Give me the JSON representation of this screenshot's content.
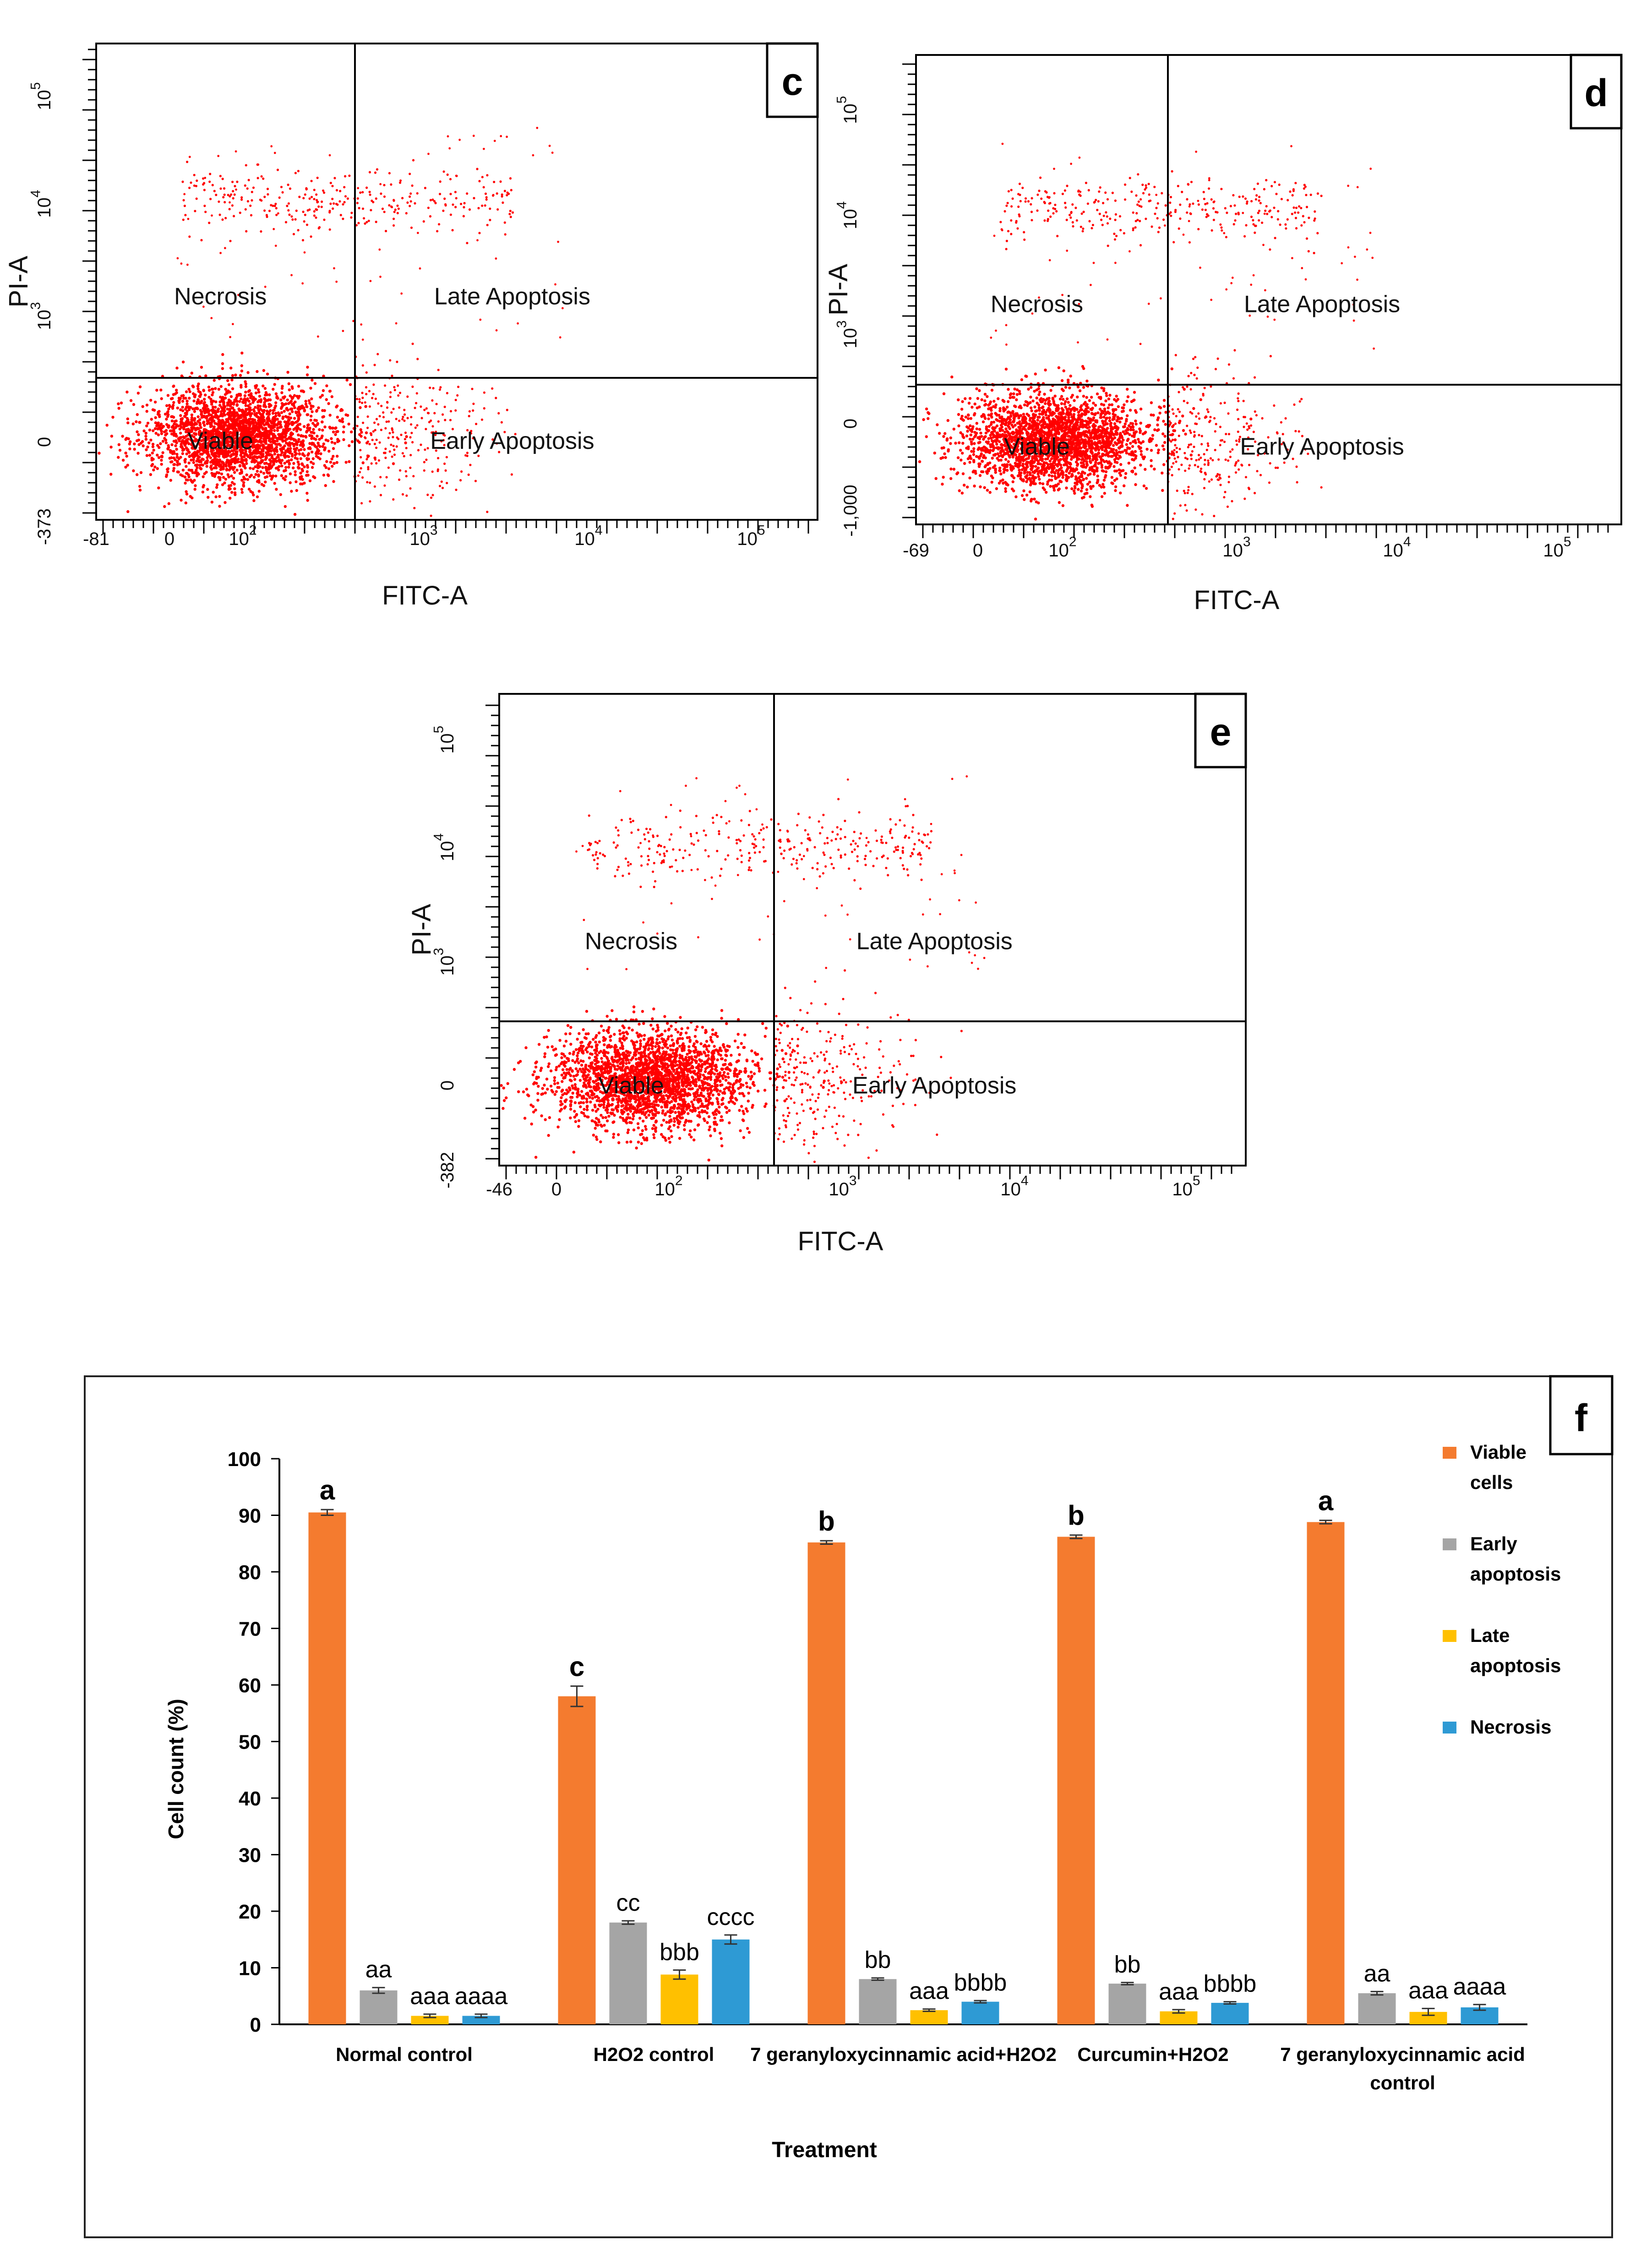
{
  "chart_data": [
    {
      "type": "scatter",
      "panel_label": "c",
      "xlabel": "FITC-A",
      "ylabel": "PI-A",
      "x_ticks": [
        "-81",
        "0",
        "10^2",
        "10^3",
        "10^4",
        "10^5"
      ],
      "y_ticks": [
        "-373",
        "0",
        "10^3",
        "10^4",
        "10^5"
      ],
      "quadrants": [
        "Necrosis",
        "Late Apoptosis",
        "Viable",
        "Early Apoptosis"
      ],
      "color": "#ff0000"
    },
    {
      "type": "scatter",
      "panel_label": "d",
      "xlabel": "FITC-A",
      "ylabel": "PI-A",
      "x_ticks": [
        "-69",
        "0",
        "10^2",
        "10^3",
        "10^4",
        "10^5"
      ],
      "y_ticks": [
        "-1,000",
        "0",
        "10^3",
        "10^4",
        "10^5"
      ],
      "quadrants": [
        "Necrosis",
        "Late Apoptosis",
        "Viable",
        "Early Apoptosis"
      ],
      "color": "#ff0000"
    },
    {
      "type": "scatter",
      "panel_label": "e",
      "xlabel": "FITC-A",
      "ylabel": "PI-A",
      "x_ticks": [
        "-46",
        "0",
        "10^2",
        "10^3",
        "10^4",
        "10^5"
      ],
      "y_ticks": [
        "-382",
        "0",
        "10^3",
        "10^4",
        "10^5"
      ],
      "quadrants": [
        "Necrosis",
        "Late Apoptosis",
        "Viable",
        "Early Apoptosis"
      ],
      "color": "#ff0000"
    },
    {
      "type": "bar",
      "panel_label": "f",
      "xlabel": "Treatment",
      "ylabel": "Cell count (%)",
      "ylim": [
        0,
        100
      ],
      "y_ticks": [
        0,
        10,
        20,
        30,
        40,
        50,
        60,
        70,
        80,
        90,
        100
      ],
      "categories": [
        "Normal control",
        "H2O2 control",
        "7 geranyloxycinnamic acid+H2O2",
        "Curcumin+H2O2",
        "7 geranyloxycinnamic acid control"
      ],
      "series": [
        {
          "name": "Viable cells",
          "color": "#f47b2f",
          "values": [
            90.5,
            58.0,
            85.2,
            86.2,
            88.8
          ],
          "errors": [
            0.5,
            1.8,
            0.3,
            0.3,
            0.3
          ],
          "letters": [
            "a",
            "c",
            "b",
            "b",
            "a"
          ]
        },
        {
          "name": "Early apoptosis",
          "color": "#a5a5a5",
          "values": [
            6.0,
            18.0,
            8.0,
            7.2,
            5.5
          ],
          "errors": [
            0.5,
            0.3,
            0.2,
            0.2,
            0.3
          ],
          "letters": [
            "aa",
            "cc",
            "bb",
            "bb",
            "aa"
          ]
        },
        {
          "name": "Late apoptosis",
          "color": "#ffc000",
          "values": [
            1.5,
            8.8,
            2.5,
            2.3,
            2.2
          ],
          "errors": [
            0.3,
            0.8,
            0.2,
            0.3,
            0.6
          ],
          "letters": [
            "aaa",
            "bbb",
            "aaa",
            "aaa",
            "aaa"
          ]
        },
        {
          "name": "Necrosis",
          "color": "#2e9ad4",
          "values": [
            1.5,
            15.0,
            4.0,
            3.8,
            3.0
          ],
          "errors": [
            0.3,
            0.8,
            0.2,
            0.2,
            0.5
          ],
          "letters": [
            "aaaa",
            "cccc",
            "bbbb",
            "bbbb",
            "aaaa"
          ]
        }
      ]
    }
  ]
}
